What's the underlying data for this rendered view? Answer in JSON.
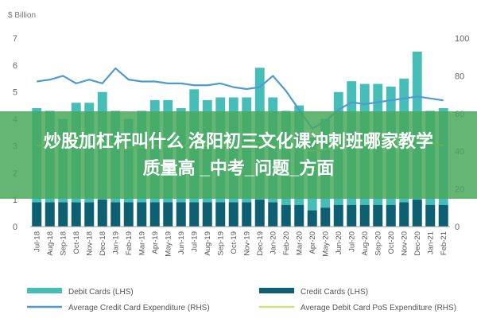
{
  "banner": {
    "line1": "炒股加杠杆叫什么 洛阳初三文化课冲刺班哪家教学",
    "line2": "质量高 _中考_问题_方面"
  },
  "colors": {
    "debit_bars": "#46bdb6",
    "credit_bars": "#0f5f73",
    "avg_credit_line": "#4f9bd0",
    "avg_debit_line": "#d3df7a"
  },
  "chart_data": {
    "type": "bar",
    "y_left_unit": "$ Billion",
    "left_ylim": [
      0,
      7
    ],
    "left_ticks": [
      "0",
      "1",
      "2",
      "3",
      "4",
      "5",
      "6",
      "7"
    ],
    "right_ylim": [
      0,
      100
    ],
    "right_ticks": [
      "0",
      "20",
      "40",
      "60",
      "80",
      "100"
    ],
    "grid": false,
    "legend_position": "bottom",
    "categories": [
      "Jul-18",
      "Aug-18",
      "Sep-18",
      "Oct-18",
      "Nov-18",
      "Dec-18",
      "Jan-19",
      "Feb-19",
      "Mar-19",
      "Apr-19",
      "May-19",
      "Jun-19",
      "Jul-19",
      "Aug-19",
      "Sep-19",
      "Oct-19",
      "Nov-19",
      "Dec-19",
      "Jan-20",
      "Feb-20",
      "Mar-20",
      "Apr-20",
      "May-20",
      "Jun-20",
      "Jul-20",
      "Aug-20",
      "Sep-20",
      "Oct-20",
      "Nov-20",
      "Dec-20",
      "Jan-21",
      "Feb-21"
    ],
    "series": [
      {
        "name": "Debit Cards (LHS)",
        "kind": "bar",
        "axis": "left",
        "values": [
          4.4,
          4.3,
          4.0,
          4.6,
          4.6,
          5.0,
          4.3,
          4.0,
          4.3,
          4.7,
          4.7,
          4.4,
          5.1,
          4.7,
          4.8,
          4.8,
          4.8,
          5.9,
          4.8,
          4.3,
          4.5,
          3.3,
          4.0,
          5.0,
          5.4,
          5.3,
          5.3,
          5.2,
          5.5,
          6.5,
          4.3,
          4.4
        ]
      },
      {
        "name": "Credit Cards (LHS)",
        "kind": "bar",
        "axis": "left",
        "values": [
          0.9,
          0.9,
          0.9,
          0.9,
          0.9,
          1.0,
          0.9,
          0.9,
          0.9,
          0.9,
          0.9,
          0.9,
          0.9,
          0.9,
          0.9,
          0.9,
          0.9,
          1.0,
          0.9,
          0.8,
          0.8,
          0.6,
          0.7,
          0.8,
          0.8,
          0.8,
          0.8,
          0.8,
          0.9,
          1.0,
          0.8,
          0.8
        ]
      },
      {
        "name": "Average Credit Card Expenditure (RHS)",
        "kind": "line",
        "axis": "right",
        "values": [
          77,
          78,
          80,
          76,
          78,
          76,
          84,
          78,
          77,
          77,
          76,
          76,
          75,
          75,
          76,
          74,
          73,
          74,
          80,
          72,
          62,
          52,
          56,
          62,
          66,
          65,
          66,
          67,
          68,
          69,
          68,
          67
        ]
      },
      {
        "name": "Average Debit Card PoS Expenditure (RHS)",
        "kind": "line",
        "axis": "right",
        "values": [
          43,
          43,
          42,
          43,
          43,
          45,
          44,
          42,
          42,
          43,
          43,
          43,
          43,
          43,
          43,
          43,
          43,
          45,
          43,
          42,
          42,
          40,
          41,
          42,
          43,
          43,
          43,
          43,
          44,
          46,
          44,
          43
        ]
      }
    ]
  }
}
